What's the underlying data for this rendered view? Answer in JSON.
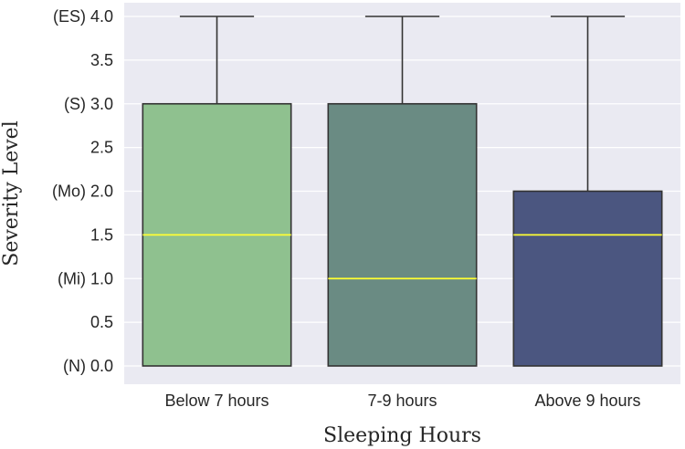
{
  "chart_data": {
    "type": "box",
    "xlabel": "Sleeping Hours",
    "ylabel": "Severity Level",
    "ylim": [
      0,
      4
    ],
    "grid": true,
    "yticks": [
      {
        "value": 0.0,
        "label": "(N) 0.0"
      },
      {
        "value": 0.5,
        "label": "0.5"
      },
      {
        "value": 1.0,
        "label": "(Mi) 1.0"
      },
      {
        "value": 1.5,
        "label": "1.5"
      },
      {
        "value": 2.0,
        "label": "(Mo) 2.0"
      },
      {
        "value": 2.5,
        "label": "2.5"
      },
      {
        "value": 3.0,
        "label": "(S) 3.0"
      },
      {
        "value": 3.5,
        "label": "3.5"
      },
      {
        "value": 4.0,
        "label": "(ES) 4.0"
      }
    ],
    "categories": [
      "Below 7 hours",
      "7-9 hours",
      "Above 9 hours"
    ],
    "boxes": [
      {
        "category": "Below 7 hours",
        "min": 0,
        "q1": 0,
        "median": 1.5,
        "q3": 3.0,
        "max": 4.0,
        "color": "#8fc18f"
      },
      {
        "category": "7-9 hours",
        "min": 0,
        "q1": 0,
        "median": 1.0,
        "q3": 3.0,
        "max": 4.0,
        "color": "#6a8b83"
      },
      {
        "category": "Above 9 hours",
        "min": 0,
        "q1": 0,
        "median": 1.5,
        "q3": 2.0,
        "max": 4.0,
        "color": "#4b5680"
      }
    ],
    "median_color": "#ffff33",
    "background_color": "#eaeaf2"
  }
}
